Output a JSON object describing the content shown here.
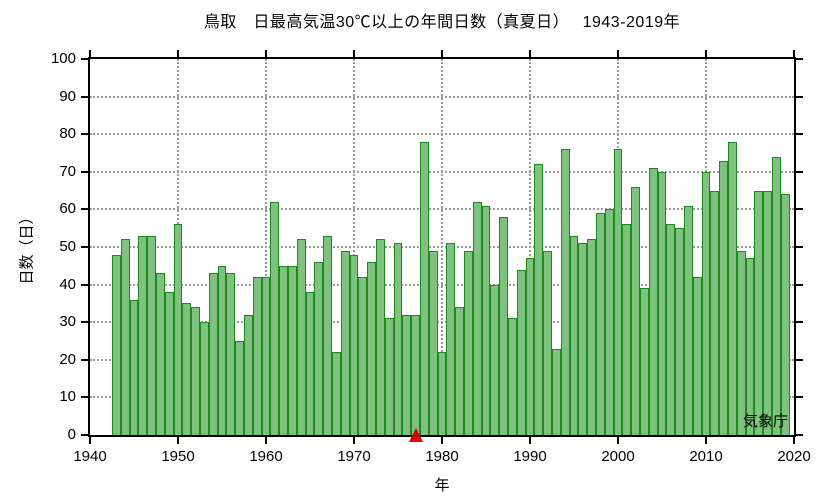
{
  "chart_data": {
    "type": "bar",
    "title": "鳥取　日最高気温30℃以上の年間日数（真夏日）　 1943-2019年",
    "xlabel": "年",
    "ylabel": "日数（日）",
    "source_label": "気象庁",
    "xlim": [
      1940,
      2020
    ],
    "ylim": [
      0,
      100
    ],
    "x_ticks": [
      1940,
      1950,
      1960,
      1970,
      1980,
      1990,
      2000,
      2010,
      2020
    ],
    "y_ticks": [
      0,
      10,
      20,
      30,
      40,
      50,
      60,
      70,
      80,
      90,
      100
    ],
    "grid": "dotted",
    "legend_position": "none",
    "years": [
      1943,
      1944,
      1945,
      1946,
      1947,
      1948,
      1949,
      1950,
      1951,
      1952,
      1953,
      1954,
      1955,
      1956,
      1957,
      1958,
      1959,
      1960,
      1961,
      1962,
      1963,
      1964,
      1965,
      1966,
      1967,
      1968,
      1969,
      1970,
      1971,
      1972,
      1973,
      1974,
      1975,
      1976,
      1977,
      1978,
      1979,
      1980,
      1981,
      1982,
      1983,
      1984,
      1985,
      1986,
      1987,
      1988,
      1989,
      1990,
      1991,
      1992,
      1993,
      1994,
      1995,
      1996,
      1997,
      1998,
      1999,
      2000,
      2001,
      2002,
      2003,
      2004,
      2005,
      2006,
      2007,
      2008,
      2009,
      2010,
      2011,
      2012,
      2013,
      2014,
      2015,
      2016,
      2017,
      2018,
      2019
    ],
    "values": [
      48,
      52,
      36,
      53,
      53,
      43,
      38,
      56,
      35,
      34,
      30,
      43,
      45,
      43,
      25,
      32,
      42,
      42,
      62,
      45,
      45,
      52,
      38,
      46,
      53,
      22,
      49,
      48,
      42,
      46,
      52,
      31,
      51,
      32,
      32,
      78,
      49,
      22,
      51,
      34,
      49,
      62,
      61,
      40,
      58,
      31,
      44,
      47,
      72,
      49,
      23,
      76,
      53,
      51,
      52,
      59,
      60,
      76,
      56,
      66,
      39,
      71,
      70,
      56,
      55,
      61,
      42,
      70,
      65,
      73,
      78,
      49,
      47,
      65,
      65,
      74,
      64
    ],
    "marker": {
      "shape": "triangle-up",
      "year": 1977,
      "color": "#dd0000"
    },
    "colors": {
      "bar_fill": "#7fc17f",
      "bar_stroke": "#1d8a1d",
      "grid": "#9a9a9a",
      "axis": "#000000",
      "background": "#ffffff",
      "marker": "#dd0000"
    }
  }
}
